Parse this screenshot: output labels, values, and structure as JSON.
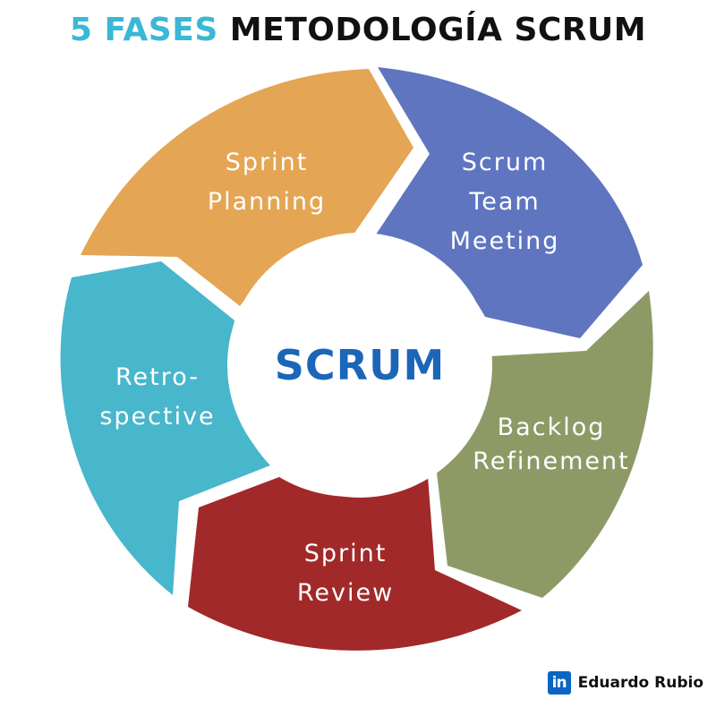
{
  "title": {
    "accent": "5 FASES",
    "main": "METODOLOGÍA SCRUM"
  },
  "center": {
    "label": "SCRUM"
  },
  "phases": [
    {
      "lines": [
        "Sprint",
        "Planning"
      ],
      "color": "#e4a654"
    },
    {
      "lines": [
        "Scrum",
        "Team",
        "Meeting"
      ],
      "color": "#5f75c0"
    },
    {
      "lines": [
        "Backlog",
        "Refinement"
      ],
      "color": "#8d9a66"
    },
    {
      "lines": [
        "Sprint",
        "Review"
      ],
      "color": "#a1292a"
    },
    {
      "lines": [
        "Retro-",
        "spective"
      ],
      "color": "#48b6cb"
    }
  ],
  "credit": {
    "icon": "linkedin-icon",
    "badge_text": "in",
    "name": "Eduardo Rubio"
  }
}
